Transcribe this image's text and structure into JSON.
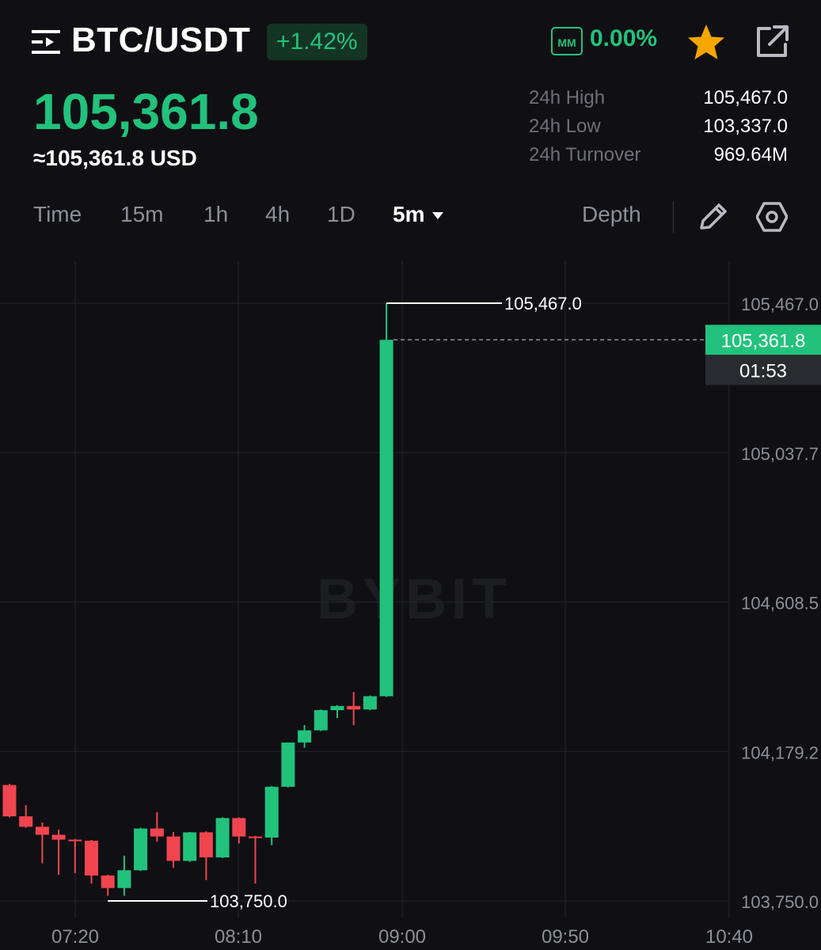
{
  "header": {
    "pair": "BTC/USDT",
    "change_pct": "+1.42%",
    "mm_label": "MM",
    "mm_value": "0.00%",
    "icons": [
      "menu-icon",
      "star-icon",
      "share-icon"
    ],
    "colors": {
      "up": "#22c27c",
      "down": "#f0454f",
      "star": "#f7a600"
    }
  },
  "price": {
    "last": "105,361.8",
    "usd": "≈105,361.8 USD"
  },
  "stats": [
    {
      "label": "24h High",
      "value": "105,467.0"
    },
    {
      "label": "24h Low",
      "value": "103,337.0"
    },
    {
      "label": "24h Turnover",
      "value": "969.64M"
    }
  ],
  "timeframes": [
    "Time",
    "15m",
    "1h",
    "4h",
    "1D"
  ],
  "active_timeframe": "5m",
  "toolbar": {
    "depth_label": "Depth",
    "icons": [
      "pencil-icon",
      "settings-icon"
    ]
  },
  "watermark": "BYBIT",
  "chart_data": {
    "type": "candlestick",
    "y_ticks": [
      "105,467.0",
      "105,037.7",
      "104,608.5",
      "104,179.2",
      "103,750.0"
    ],
    "y_tick_values": [
      105467.0,
      105037.7,
      104608.5,
      104179.2,
      103750.0
    ],
    "x_ticks": [
      "07:20",
      "08:10",
      "09:00",
      "09:50",
      "10:40"
    ],
    "ylim": [
      103750.0,
      105467.0
    ],
    "high_marker": "105,467.0",
    "low_marker": "103,750.0",
    "last_price_label": "105,361.8",
    "countdown": "01:53",
    "candles": [
      {
        "o": 104083,
        "h": 104086,
        "c": 103993,
        "l": 103990
      },
      {
        "o": 103993,
        "h": 104025,
        "c": 103963,
        "l": 103960
      },
      {
        "o": 103963,
        "h": 103975,
        "c": 103940,
        "l": 103858
      },
      {
        "o": 103940,
        "h": 103955,
        "c": 103926,
        "l": 103825
      },
      {
        "o": 103926,
        "h": 103928,
        "c": 103923,
        "l": 103830
      },
      {
        "o": 103923,
        "h": 103925,
        "c": 103823,
        "l": 103800
      },
      {
        "o": 103823,
        "h": 103825,
        "c": 103787,
        "l": 103765
      },
      {
        "o": 103787,
        "h": 103880,
        "c": 103838,
        "l": 103765
      },
      {
        "o": 103838,
        "h": 103960,
        "c": 103958,
        "l": 103836
      },
      {
        "o": 103958,
        "h": 104005,
        "c": 103935,
        "l": 103920
      },
      {
        "o": 103935,
        "h": 103948,
        "c": 103865,
        "l": 103845
      },
      {
        "o": 103865,
        "h": 103948,
        "c": 103947,
        "l": 103862
      },
      {
        "o": 103947,
        "h": 103950,
        "c": 103875,
        "l": 103810
      },
      {
        "o": 103875,
        "h": 103990,
        "c": 103988,
        "l": 103873
      },
      {
        "o": 103988,
        "h": 103990,
        "c": 103935,
        "l": 103915
      },
      {
        "o": 103935,
        "h": 103937,
        "c": 103932,
        "l": 103800
      },
      {
        "o": 103932,
        "h": 104080,
        "c": 104078,
        "l": 103910
      },
      {
        "o": 104078,
        "h": 104205,
        "c": 104205,
        "l": 104076
      },
      {
        "o": 104205,
        "h": 104255,
        "c": 104240,
        "l": 104190
      },
      {
        "o": 104240,
        "h": 104300,
        "c": 104298,
        "l": 104238
      },
      {
        "o": 104298,
        "h": 104312,
        "c": 104310,
        "l": 104275
      },
      {
        "o": 104310,
        "h": 104350,
        "c": 104300,
        "l": 104255
      },
      {
        "o": 104300,
        "h": 104340,
        "c": 104338,
        "l": 104298
      },
      {
        "o": 104338,
        "h": 105467,
        "c": 105361.8,
        "l": 104336
      }
    ]
  }
}
